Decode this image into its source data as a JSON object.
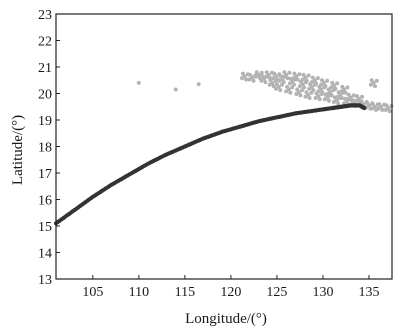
{
  "chart_data": {
    "type": "scatter",
    "title": "",
    "xlabel": "Longitude/(°)",
    "ylabel": "Latitude/(°)",
    "xlim": [
      101,
      137.5
    ],
    "ylim": [
      13,
      23
    ],
    "xticks": [
      105,
      110,
      115,
      120,
      125,
      130,
      135
    ],
    "yticks": [
      13,
      14,
      15,
      16,
      17,
      18,
      19,
      20,
      21,
      22,
      23
    ],
    "grid": false,
    "legend": "none",
    "series": [
      {
        "style": "dense dark track",
        "color": "#333333",
        "points": [
          [
            101,
            15.1
          ],
          [
            103,
            15.6
          ],
          [
            105,
            16.1
          ],
          [
            107,
            16.55
          ],
          [
            109,
            16.95
          ],
          [
            111,
            17.35
          ],
          [
            113,
            17.7
          ],
          [
            115,
            18.0
          ],
          [
            117,
            18.3
          ],
          [
            119,
            18.55
          ],
          [
            121,
            18.75
          ],
          [
            123,
            18.95
          ],
          [
            125,
            19.1
          ],
          [
            127,
            19.25
          ],
          [
            129,
            19.35
          ],
          [
            131,
            19.45
          ],
          [
            132,
            19.5
          ],
          [
            133,
            19.55
          ],
          [
            134,
            19.55
          ],
          [
            134.5,
            19.45
          ]
        ]
      },
      {
        "style": "scattered grey cluster",
        "color": "#b3b3b3",
        "points": [
          [
            121.5,
            20.65
          ],
          [
            122.3,
            20.6
          ],
          [
            123,
            20.7
          ],
          [
            123.6,
            20.55
          ],
          [
            124.1,
            20.7
          ],
          [
            124.5,
            20.4
          ],
          [
            124.9,
            20.65
          ],
          [
            125.2,
            20.25
          ],
          [
            125.6,
            20.55
          ],
          [
            126,
            20.7
          ],
          [
            126.3,
            20.15
          ],
          [
            126.7,
            20.45
          ],
          [
            127.1,
            20.65
          ],
          [
            127.4,
            20.05
          ],
          [
            127.8,
            20.35
          ],
          [
            128.1,
            20.6
          ],
          [
            128.4,
            19.95
          ],
          [
            128.8,
            20.25
          ],
          [
            129.1,
            20.5
          ],
          [
            129.5,
            19.9
          ],
          [
            129.8,
            20.15
          ],
          [
            130.1,
            20.4
          ],
          [
            130.5,
            19.85
          ],
          [
            130.8,
            20.05
          ],
          [
            131.2,
            20.3
          ],
          [
            131.5,
            19.75
          ],
          [
            131.9,
            19.95
          ],
          [
            132.3,
            20.15
          ],
          [
            132.6,
            19.7
          ],
          [
            133,
            19.85
          ],
          [
            133.4,
            19.65
          ],
          [
            133.9,
            19.8
          ],
          [
            134.4,
            19.6
          ],
          [
            135,
            19.55
          ],
          [
            135.6,
            19.5
          ],
          [
            136.3,
            19.5
          ],
          [
            137.1,
            19.45
          ],
          [
            110,
            20.4
          ],
          [
            114,
            20.15
          ],
          [
            116.5,
            20.35
          ],
          [
            135.5,
            20.4
          ]
        ]
      }
    ]
  }
}
